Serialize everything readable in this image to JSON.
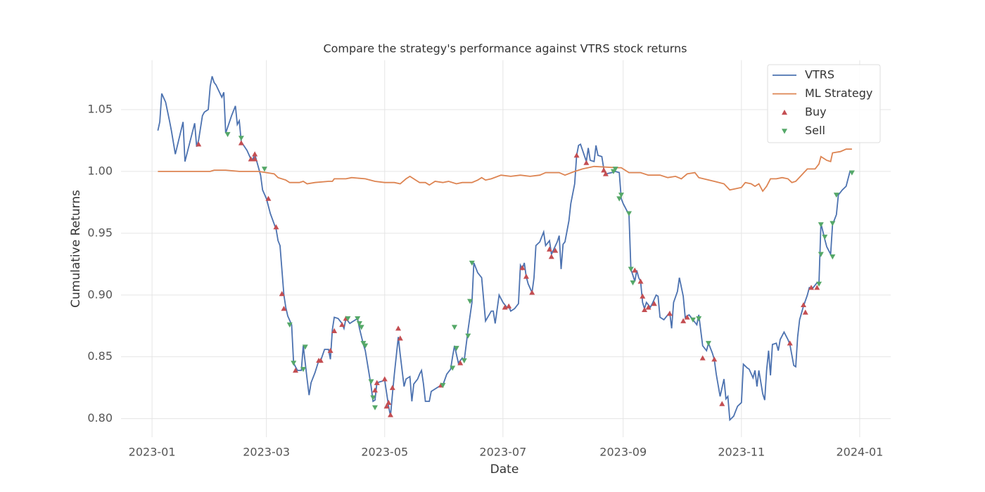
{
  "chart_data": {
    "type": "line",
    "title": "Compare the strategy's performance against VTRS stock returns",
    "x_label": "Date",
    "y_label": "Cumulative Returns",
    "xlim": [
      -16,
      381
    ],
    "xticks": [
      {
        "value": 0,
        "label": "2023-01"
      },
      {
        "value": 59,
        "label": "2023-03"
      },
      {
        "value": 120,
        "label": "2023-05"
      },
      {
        "value": 181,
        "label": "2023-07"
      },
      {
        "value": 243,
        "label": "2023-09"
      },
      {
        "value": 304,
        "label": "2023-11"
      },
      {
        "value": 365,
        "label": "2024-01"
      }
    ],
    "ylim": [
      0.785,
      1.09
    ],
    "yticks": [
      {
        "value": 0.8,
        "label": "0.80"
      },
      {
        "value": 0.85,
        "label": "0.85"
      },
      {
        "value": 0.9,
        "label": "0.90"
      },
      {
        "value": 0.95,
        "label": "0.95"
      },
      {
        "value": 1.0,
        "label": "1.00"
      },
      {
        "value": 1.05,
        "label": "1.05"
      }
    ],
    "grid": true,
    "legend": "upper right",
    "series": [
      {
        "name": "VTRS",
        "color": "#4c72b0",
        "style": "line",
        "x": [
          3,
          4,
          5,
          7,
          9,
          10,
          12,
          16,
          17,
          22,
          23,
          24,
          26,
          27,
          29,
          30,
          31,
          32,
          33,
          36,
          37,
          38,
          41,
          43,
          44,
          45,
          46,
          49,
          51,
          52,
          53,
          56,
          57,
          59,
          61,
          64,
          65,
          66,
          68,
          69,
          70,
          72,
          73,
          74,
          75,
          77,
          78,
          80,
          81,
          82,
          84,
          86,
          87,
          89,
          91,
          92,
          93,
          94,
          96,
          98,
          99,
          100,
          102,
          103,
          106,
          107,
          109,
          110,
          112,
          113,
          114,
          115,
          116,
          118,
          120,
          122,
          123,
          124,
          125,
          126,
          127,
          128,
          130,
          131,
          133,
          134,
          135,
          137,
          138,
          139,
          140,
          141,
          143,
          144,
          146,
          148,
          150,
          152,
          154,
          155,
          156,
          158,
          160,
          161,
          163,
          165,
          166,
          168,
          170,
          172,
          175,
          176,
          177,
          179,
          181,
          183,
          184,
          185,
          187,
          189,
          190,
          191,
          192,
          193,
          194,
          196,
          197,
          198,
          200,
          202,
          203,
          205,
          206,
          209,
          210,
          211,
          212,
          213,
          215,
          216,
          218,
          219,
          220,
          221,
          224,
          225,
          226,
          228,
          229,
          230,
          232,
          233,
          234,
          237,
          239,
          241,
          242,
          243,
          245,
          246,
          247,
          249,
          250,
          251,
          252,
          253,
          254,
          255,
          257,
          258,
          260,
          261,
          262,
          264,
          266,
          267,
          268,
          269,
          271,
          272,
          274,
          275,
          277,
          279,
          281,
          282,
          284,
          286,
          287,
          289,
          290,
          291,
          293,
          295,
          296,
          297,
          298,
          300,
          301,
          302,
          304,
          305,
          307,
          308,
          310,
          311,
          312,
          313,
          315,
          316,
          317,
          318,
          319,
          320,
          322,
          323,
          324,
          326,
          328,
          329,
          331,
          332,
          333,
          334,
          336,
          338,
          339,
          341,
          343,
          344,
          345,
          347,
          348,
          350,
          351,
          353,
          354,
          356,
          358,
          360,
          361
        ],
        "values": [
          1.033,
          1.04,
          1.063,
          1.056,
          1.041,
          1.033,
          1.014,
          1.04,
          1.008,
          1.039,
          1.02,
          1.025,
          1.045,
          1.048,
          1.05,
          1.069,
          1.077,
          1.072,
          1.07,
          1.06,
          1.064,
          1.031,
          1.045,
          1.053,
          1.038,
          1.041,
          1.024,
          1.017,
          1.01,
          1.01,
          1.014,
          0.997,
          0.985,
          0.978,
          0.966,
          0.953,
          0.944,
          0.94,
          0.9,
          0.89,
          0.883,
          0.876,
          0.845,
          0.842,
          0.839,
          0.839,
          0.859,
          0.832,
          0.819,
          0.829,
          0.837,
          0.847,
          0.847,
          0.856,
          0.856,
          0.848,
          0.872,
          0.882,
          0.881,
          0.877,
          0.873,
          0.881,
          0.877,
          0.878,
          0.881,
          0.873,
          0.86,
          0.855,
          0.836,
          0.826,
          0.814,
          0.815,
          0.829,
          0.83,
          0.831,
          0.81,
          0.802,
          0.82,
          0.836,
          0.851,
          0.866,
          0.852,
          0.826,
          0.832,
          0.834,
          0.814,
          0.828,
          0.832,
          0.836,
          0.839,
          0.828,
          0.814,
          0.814,
          0.822,
          0.824,
          0.826,
          0.827,
          0.836,
          0.84,
          0.85,
          0.859,
          0.845,
          0.849,
          0.847,
          0.872,
          0.894,
          0.926,
          0.918,
          0.914,
          0.879,
          0.887,
          0.887,
          0.877,
          0.9,
          0.894,
          0.89,
          0.891,
          0.887,
          0.889,
          0.893,
          0.924,
          0.921,
          0.926,
          0.915,
          0.909,
          0.902,
          0.914,
          0.94,
          0.943,
          0.951,
          0.94,
          0.944,
          0.933,
          0.943,
          0.948,
          0.921,
          0.941,
          0.943,
          0.96,
          0.974,
          0.99,
          1.013,
          1.021,
          1.022,
          1.008,
          1.019,
          1.009,
          1.008,
          1.021,
          1.013,
          1.012,
          1.002,
          0.998,
          0.999,
          1.0,
          0.999,
          0.978,
          0.974,
          0.968,
          0.965,
          0.921,
          0.911,
          0.92,
          0.914,
          0.911,
          0.894,
          0.889,
          0.894,
          0.89,
          0.893,
          0.9,
          0.899,
          0.882,
          0.88,
          0.884,
          0.886,
          0.873,
          0.894,
          0.903,
          0.914,
          0.899,
          0.882,
          0.884,
          0.88,
          0.876,
          0.884,
          0.859,
          0.855,
          0.861,
          0.853,
          0.848,
          0.836,
          0.818,
          0.832,
          0.816,
          0.818,
          0.799,
          0.802,
          0.806,
          0.81,
          0.813,
          0.844,
          0.841,
          0.84,
          0.833,
          0.839,
          0.826,
          0.839,
          0.82,
          0.815,
          0.839,
          0.855,
          0.835,
          0.86,
          0.861,
          0.855,
          0.864,
          0.87,
          0.864,
          0.86,
          0.843,
          0.842,
          0.866,
          0.88,
          0.891,
          0.9,
          0.906,
          0.906,
          0.91,
          0.909,
          0.958,
          0.945,
          0.939,
          0.933,
          0.957,
          0.965,
          0.981,
          0.985,
          0.988,
          1.0,
          1.0
        ]
      },
      {
        "name": "ML Strategy",
        "color": "#dd8452",
        "style": "line",
        "x": [
          3,
          30,
          32,
          38,
          45,
          55,
          59,
          63,
          65,
          69,
          71,
          76,
          78,
          80,
          84,
          91,
          93,
          94,
          100,
          103,
          110,
          115,
          120,
          125,
          128,
          131,
          133,
          136,
          138,
          141,
          143,
          146,
          150,
          153,
          157,
          160,
          165,
          168,
          170,
          172,
          175,
          180,
          185,
          190,
          195,
          200,
          203,
          210,
          213,
          218,
          222,
          228,
          240,
          242,
          246,
          252,
          256,
          262,
          266,
          270,
          273,
          276,
          280,
          282,
          290,
          295,
          298,
          301,
          304,
          306,
          309,
          311,
          313,
          315,
          317,
          319,
          322,
          325,
          328,
          330,
          332,
          335,
          338,
          342,
          344,
          345,
          348,
          350,
          351,
          355,
          358,
          361
        ],
        "values": [
          1.0,
          1.0,
          1.001,
          1.001,
          1.0,
          1.0,
          0.999,
          0.998,
          0.995,
          0.993,
          0.991,
          0.991,
          0.992,
          0.99,
          0.991,
          0.992,
          0.992,
          0.994,
          0.994,
          0.995,
          0.994,
          0.992,
          0.991,
          0.991,
          0.99,
          0.994,
          0.996,
          0.993,
          0.991,
          0.991,
          0.989,
          0.992,
          0.991,
          0.992,
          0.99,
          0.991,
          0.991,
          0.993,
          0.995,
          0.993,
          0.994,
          0.997,
          0.996,
          0.997,
          0.996,
          0.997,
          0.999,
          0.999,
          0.997,
          1.0,
          1.002,
          1.004,
          1.003,
          1.003,
          0.999,
          0.999,
          0.997,
          0.997,
          0.995,
          0.996,
          0.994,
          0.998,
          0.999,
          0.995,
          0.992,
          0.99,
          0.985,
          0.986,
          0.987,
          0.991,
          0.99,
          0.988,
          0.99,
          0.984,
          0.988,
          0.994,
          0.994,
          0.995,
          0.994,
          0.991,
          0.992,
          0.997,
          1.002,
          1.002,
          1.006,
          1.012,
          1.009,
          1.008,
          1.015,
          1.016,
          1.018,
          1.018
        ]
      },
      {
        "name": "Buy",
        "color": "#c44e52",
        "style": "triangle-up",
        "x": [
          24,
          46,
          51,
          53,
          53,
          60,
          64,
          67,
          68,
          74,
          86,
          87,
          92,
          94,
          98,
          100,
          115,
          116,
          120,
          121,
          122,
          123,
          124,
          127,
          128,
          149,
          159,
          182,
          184,
          191,
          193,
          196,
          205,
          206,
          208,
          219,
          224,
          233,
          234,
          249,
          252,
          253,
          254,
          256,
          259,
          267,
          274,
          276,
          284,
          290,
          294,
          329,
          336,
          337,
          340,
          343
        ],
        "values": [
          1.022,
          1.023,
          1.01,
          1.01,
          1.014,
          0.978,
          0.955,
          0.901,
          0.889,
          0.839,
          0.847,
          0.847,
          0.855,
          0.871,
          0.876,
          0.881,
          0.823,
          0.829,
          0.832,
          0.81,
          0.813,
          0.803,
          0.825,
          0.873,
          0.865,
          0.827,
          0.845,
          0.89,
          0.891,
          0.922,
          0.915,
          0.902,
          0.937,
          0.931,
          0.936,
          1.013,
          1.007,
          1.001,
          0.998,
          0.92,
          0.911,
          0.899,
          0.888,
          0.89,
          0.893,
          0.885,
          0.879,
          0.882,
          0.849,
          0.848,
          0.812,
          0.861,
          0.892,
          0.886,
          0.906,
          0.906
        ]
      },
      {
        "name": "Sell",
        "color": "#55a868",
        "style": "triangle-down",
        "x": [
          39,
          46,
          58,
          71,
          73,
          78,
          79,
          101,
          106,
          107,
          108,
          109,
          110,
          113,
          114,
          115,
          150,
          155,
          156,
          157,
          161,
          163,
          164,
          165,
          238,
          239,
          241,
          242,
          246,
          247,
          248,
          279,
          282,
          287,
          344,
          345,
          345,
          347,
          351,
          351,
          353,
          361
        ],
        "values": [
          1.03,
          1.027,
          1.002,
          0.876,
          0.845,
          0.84,
          0.858,
          0.881,
          0.881,
          0.877,
          0.874,
          0.861,
          0.859,
          0.83,
          0.817,
          0.809,
          0.827,
          0.841,
          0.874,
          0.857,
          0.847,
          0.867,
          0.895,
          0.926,
          1.0,
          1.002,
          0.978,
          0.981,
          0.966,
          0.921,
          0.91,
          0.88,
          0.881,
          0.861,
          0.909,
          0.957,
          0.933,
          0.947,
          0.931,
          0.958,
          0.981,
          0.999
        ]
      }
    ]
  }
}
